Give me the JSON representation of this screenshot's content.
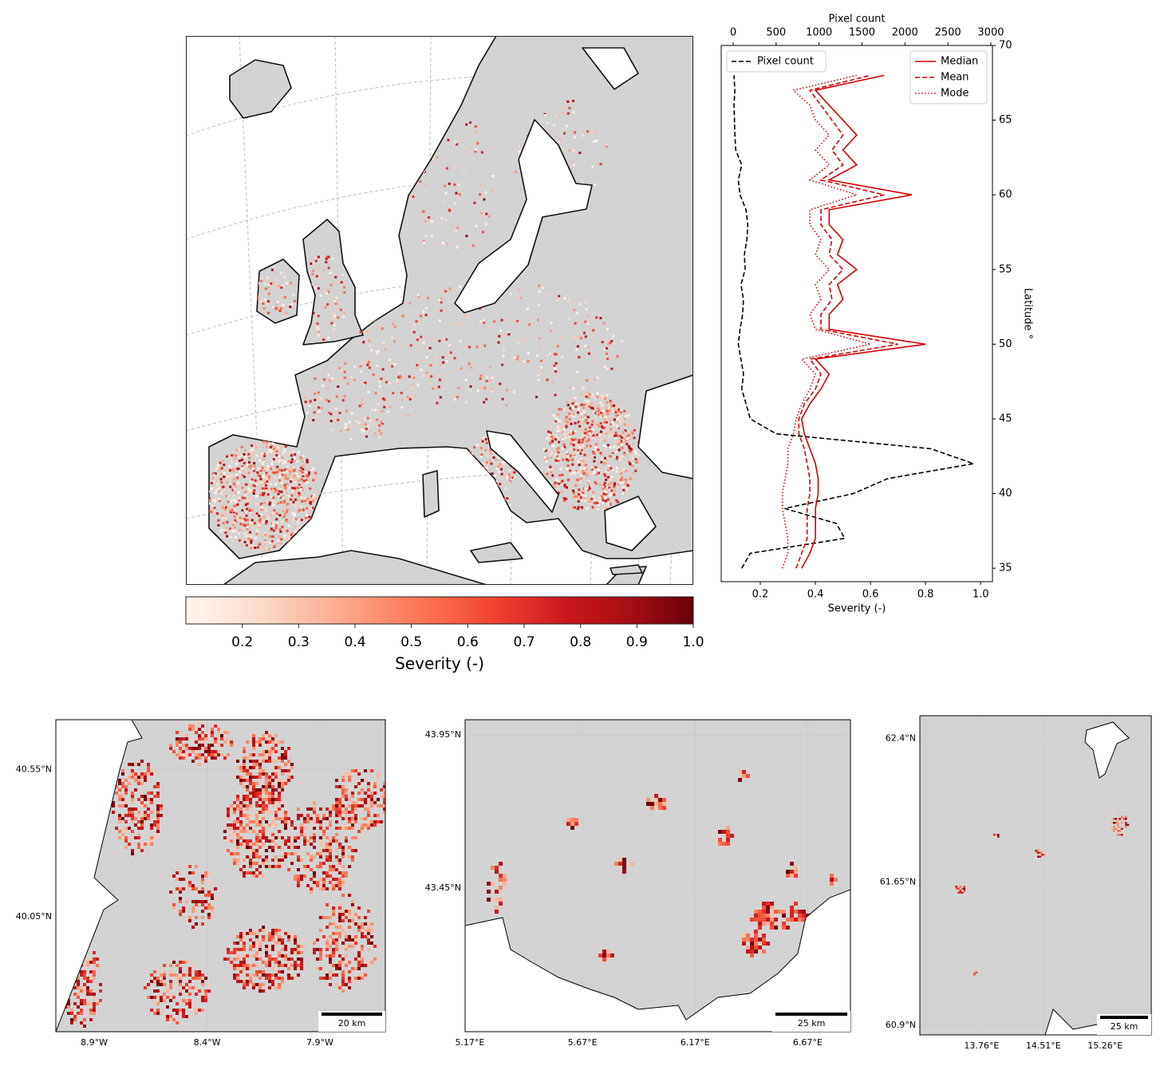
{
  "overview_map": {
    "colorbar": {
      "label": "Severity (-)",
      "lim": [
        0.1,
        1.0
      ],
      "ticks": [
        0.2,
        0.3,
        0.4,
        0.5,
        0.6,
        0.7,
        0.8,
        0.9,
        {
          "value": 1,
          "label": "1.0"
        }
      ],
      "colors": [
        "#fff5f0",
        "#fee0d2",
        "#fcbba1",
        "#fc9272",
        "#fb6a4a",
        "#ef3b2c",
        "#cb181d",
        "#a50f15",
        "#67000d"
      ]
    }
  },
  "chart_data": {
    "type": "line",
    "xlabel": "Severity (-)",
    "x2label": "Pixel count",
    "ylabel": "Latitude °",
    "y": [
      35,
      36,
      37,
      38,
      39,
      40,
      41,
      42,
      43,
      44,
      45,
      46,
      47,
      48,
      49,
      50,
      51,
      52,
      53,
      54,
      55,
      56,
      57,
      58,
      59,
      60,
      61,
      62,
      63,
      64,
      65,
      66,
      67,
      68
    ],
    "xlim": [
      0.058,
      1.043
    ],
    "xticks": [
      0.2,
      0.4,
      0.6,
      0.8,
      {
        "value": 1,
        "label": "1.0"
      }
    ],
    "x2lim": [
      -139,
      3019
    ],
    "x2ticks": [
      0,
      500,
      1000,
      1500,
      2000,
      2500,
      3000
    ],
    "ylim": [
      34.1,
      70
    ],
    "yticks": [
      35,
      40,
      45,
      50,
      55,
      60,
      65,
      70
    ],
    "series": [
      {
        "name": "Pixel count",
        "color": "#000000",
        "dash": "dashed",
        "axis": "x2",
        "legend": "upper left",
        "values": [
          100,
          200,
          1300,
          1200,
          600,
          1400,
          1800,
          2800,
          2300,
          500,
          200,
          150,
          100,
          120,
          90,
          60,
          80,
          110,
          120,
          90,
          140,
          130,
          160,
          170,
          150,
          80,
          60,
          100,
          30,
          20,
          15,
          10,
          20,
          10
        ]
      },
      {
        "name": "Median",
        "color": "#d40000",
        "dash": "solid",
        "legend": "upper right",
        "values": [
          0.35,
          0.38,
          0.4,
          0.4,
          0.4,
          0.41,
          0.41,
          0.4,
          0.38,
          0.36,
          0.35,
          0.38,
          0.42,
          0.45,
          0.4,
          0.8,
          0.45,
          0.45,
          0.5,
          0.48,
          0.55,
          0.48,
          0.5,
          0.45,
          0.45,
          0.75,
          0.45,
          0.55,
          0.5,
          0.55,
          0.5,
          0.45,
          0.4,
          0.65
        ]
      },
      {
        "name": "Mean",
        "color": "#d40000",
        "dash": "dashed",
        "legend": "upper right",
        "values": [
          0.33,
          0.35,
          0.37,
          0.37,
          0.37,
          0.38,
          0.38,
          0.37,
          0.36,
          0.34,
          0.34,
          0.36,
          0.4,
          0.42,
          0.38,
          0.7,
          0.42,
          0.42,
          0.46,
          0.45,
          0.5,
          0.45,
          0.46,
          0.42,
          0.42,
          0.65,
          0.42,
          0.5,
          0.46,
          0.5,
          0.46,
          0.42,
          0.38,
          0.6
        ]
      },
      {
        "name": "Mode",
        "color": "#d40000",
        "dash": "dotted",
        "legend": "upper right",
        "values": [
          0.28,
          0.3,
          0.3,
          0.29,
          0.28,
          0.28,
          0.29,
          0.3,
          0.3,
          0.32,
          0.33,
          0.35,
          0.38,
          0.4,
          0.35,
          0.6,
          0.4,
          0.38,
          0.42,
          0.4,
          0.45,
          0.4,
          0.42,
          0.38,
          0.38,
          0.55,
          0.38,
          0.45,
          0.4,
          0.45,
          0.4,
          0.38,
          0.32,
          0.55
        ]
      }
    ]
  },
  "inset_maps": [
    {
      "xlim": [
        -9.07,
        -7.61
      ],
      "ylim": [
        39.66,
        40.72
      ],
      "xticks": [
        {
          "value": -8.9,
          "label": "8.9°W"
        },
        {
          "value": -8.4,
          "label": "8.4°W"
        },
        {
          "value": -7.9,
          "label": "7.9°W"
        }
      ],
      "yticks": [
        {
          "value": 40.55,
          "label": "40.55°N"
        },
        {
          "value": 40.05,
          "label": "40.05°N"
        }
      ],
      "scale_bar": "20 km"
    },
    {
      "xlim": [
        5.149,
        6.86
      ],
      "ylim": [
        42.98,
        44.0
      ],
      "xticks": [
        {
          "value": 5.17,
          "label": "5.17°E"
        },
        {
          "value": 5.67,
          "label": "5.67°E"
        },
        {
          "value": 6.17,
          "label": "6.17°E"
        },
        {
          "value": 6.67,
          "label": "6.67°E"
        }
      ],
      "yticks": [
        {
          "value": 43.95,
          "label": "43.95°N"
        },
        {
          "value": 43.45,
          "label": "43.45°N"
        }
      ],
      "scale_bar": "25 km"
    },
    {
      "xlim": [
        13.01,
        15.82
      ],
      "ylim": [
        60.85,
        62.52
      ],
      "xticks": [
        {
          "value": 13.76,
          "label": "13.76°E"
        },
        {
          "value": 14.51,
          "label": "14.51°E"
        },
        {
          "value": 15.26,
          "label": "15.26°E"
        }
      ],
      "yticks": [
        {
          "value": 62.4,
          "label": "62.4°N"
        },
        {
          "value": 61.65,
          "label": "61.65°N"
        },
        {
          "value": 60.9,
          "label": "60.9°N"
        }
      ],
      "scale_bar": "25 km"
    }
  ]
}
